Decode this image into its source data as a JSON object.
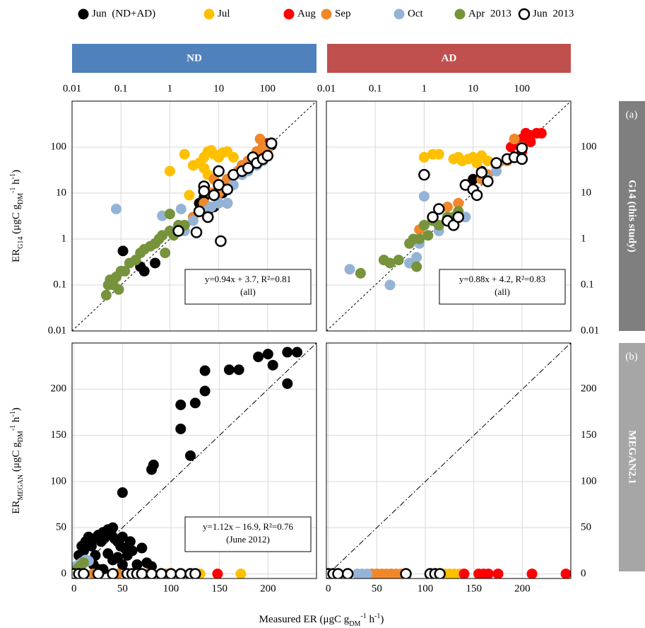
{
  "legend": {
    "series": [
      {
        "name": "Jun  (ND+AD)",
        "color": "#000000"
      },
      {
        "name": "Jul",
        "color": "#ffc000"
      },
      {
        "name": "Aug",
        "color": "#ff0000"
      },
      {
        "name": "Sep",
        "color": "#f0882a"
      },
      {
        "name": "Oct",
        "color": "#95b3d7"
      },
      {
        "name": "Apr  2013",
        "color": "#77933c"
      },
      {
        "name": "Jun  2013",
        "color": "#ffffff",
        "hollow": true
      }
    ]
  },
  "headers": [
    "ND",
    "AD"
  ],
  "side_panels": [
    {
      "tag": "(a)",
      "label": "G14 (this study)",
      "color": "#7f7f7f"
    },
    {
      "tag": "(b)",
      "label": "MEGAN2.1",
      "color": "#a6a6a6"
    }
  ],
  "xlabel_parts": [
    {
      "text": "Measured ER (μgC g"
    },
    {
      "text": "DM",
      "shift": "sub"
    },
    {
      "text": "-1",
      "shift": "super"
    },
    {
      "text": " h"
    },
    {
      "text": "-1",
      "shift": "super"
    },
    {
      "text": ")"
    }
  ],
  "chart_data": [
    {
      "type": "scatter",
      "xlog": true,
      "ylog": true,
      "xlim": [
        0.01,
        1000
      ],
      "ylim": [
        0.01,
        1000
      ],
      "xticks": [
        0.01,
        0.1,
        1,
        10,
        100
      ],
      "yticks": [
        0.01,
        0.1,
        1,
        10,
        100
      ],
      "grid": true,
      "ref_line": "dashed",
      "ylabel_parts": [
        {
          "text": "ER"
        },
        {
          "text": "G14",
          "shift": "sub"
        },
        {
          "text": " (μgC g"
        },
        {
          "text": "DM",
          "shift": "sub"
        },
        {
          "text": "-1",
          "shift": "super"
        },
        {
          "text": " h"
        },
        {
          "text": "-1",
          "shift": "super"
        },
        {
          "text": ")"
        }
      ],
      "annotation": [
        "y=0.94x + 3.7, R²=0.81",
        "(all)"
      ],
      "series": [
        {
          "x": [
            0.11,
            0.25,
            0.3,
            0.5,
            5,
            7,
            8,
            10,
            12,
            15,
            20,
            25,
            30,
            40,
            50,
            60,
            80,
            100,
            120,
            6,
            4,
            15
          ],
          "y": [
            0.55,
            0.25,
            0.2,
            0.3,
            8,
            10,
            5,
            12,
            10,
            20,
            25,
            30,
            40,
            50,
            60,
            70,
            100,
            120,
            110,
            4,
            6,
            6
          ]
        },
        {
          "x": [
            1,
            2,
            2.5,
            3,
            4,
            5,
            6,
            7,
            8,
            10,
            12,
            15,
            20,
            5,
            6
          ],
          "y": [
            30,
            70,
            9,
            40,
            45,
            60,
            80,
            85,
            70,
            60,
            75,
            80,
            60,
            35,
            25
          ]
        },
        {
          "x": [
            80,
            100,
            110,
            120,
            90,
            70
          ],
          "y": [
            90,
            110,
            120,
            125,
            100,
            80
          ]
        },
        {
          "x": [
            0.5,
            2,
            3,
            5,
            7,
            10,
            12,
            15,
            20,
            25,
            30,
            40,
            50,
            60,
            70,
            80,
            100,
            5,
            8
          ],
          "y": [
            0.8,
            2,
            3,
            6,
            10,
            10,
            15,
            20,
            25,
            30,
            40,
            50,
            60,
            80,
            150,
            100,
            90,
            12,
            20
          ]
        },
        {
          "x": [
            0.08,
            0.7,
            1.7,
            2,
            3,
            5,
            7,
            10,
            20,
            30,
            40,
            60,
            80,
            15
          ],
          "y": [
            4.5,
            3.2,
            4.5,
            1.5,
            2.5,
            4,
            5,
            6,
            15,
            25,
            30,
            40,
            50,
            6
          ]
        },
        {
          "x": [
            0.05,
            0.055,
            0.06,
            0.07,
            0.08,
            0.1,
            0.12,
            0.15,
            0.2,
            0.25,
            0.3,
            0.4,
            0.5,
            0.7,
            1,
            1.5,
            2,
            0.09,
            0.6,
            1,
            0.8,
            1.2
          ],
          "y": [
            0.06,
            0.1,
            0.13,
            0.1,
            0.15,
            0.2,
            0.2,
            0.3,
            0.35,
            0.5,
            0.6,
            0.7,
            0.8,
            1.2,
            1.5,
            2,
            2,
            0.08,
            1,
            3.5,
            0.5,
            1.2
          ]
        },
        {
          "x": [
            1.5,
            4,
            5,
            6,
            8,
            10,
            11,
            15,
            20,
            30,
            40,
            50,
            60,
            80,
            100,
            120,
            10,
            3.5,
            5
          ],
          "y": [
            1.5,
            4,
            14,
            3,
            9,
            15,
            0.9,
            12,
            25,
            30,
            35,
            60,
            45,
            55,
            65,
            120,
            30,
            1.4,
            11
          ]
        }
      ]
    },
    {
      "type": "scatter",
      "xlog": true,
      "ylog": true,
      "xlim": [
        0.01,
        1000
      ],
      "ylim": [
        0.01,
        1000
      ],
      "xticks": [
        0.01,
        0.1,
        1,
        10,
        100
      ],
      "yticks": [
        0.01,
        0.1,
        1,
        10,
        100
      ],
      "grid": true,
      "ref_line": "dashed",
      "annotation": [
        "y=0.88x + 4.2, R²=0.83",
        "(all)"
      ],
      "series": [
        {
          "x": [
            10,
            15,
            20
          ],
          "y": [
            20,
            30,
            25
          ]
        },
        {
          "x": [
            1,
            1.5,
            2,
            4,
            5,
            6,
            8,
            10,
            12,
            15,
            20
          ],
          "y": [
            60,
            70,
            70,
            55,
            60,
            50,
            55,
            60,
            45,
            65,
            50
          ]
        },
        {
          "x": [
            60,
            80,
            100,
            120,
            150,
            200,
            250,
            100,
            150
          ],
          "y": [
            100,
            120,
            150,
            200,
            180,
            200,
            200,
            80,
            130
          ]
        },
        {
          "x": [
            0.8,
            3,
            5,
            10,
            15,
            20,
            30,
            50,
            70,
            100
          ],
          "y": [
            1.6,
            5,
            6,
            12,
            20,
            25,
            40,
            50,
            150,
            100
          ]
        },
        {
          "x": [
            0.03,
            0.2,
            0.5,
            0.7,
            0.8,
            1,
            2,
            3,
            5,
            7,
            10,
            20,
            30
          ],
          "y": [
            0.22,
            0.1,
            0.3,
            0.4,
            0.8,
            8.5,
            1.5,
            2.5,
            3,
            3,
            12,
            20,
            30
          ]
        },
        {
          "x": [
            0.05,
            0.15,
            0.2,
            0.3,
            0.5,
            0.6,
            0.8,
            1,
            1.5,
            2,
            3,
            4,
            5,
            1.2,
            0.7
          ],
          "y": [
            0.18,
            0.35,
            0.3,
            0.35,
            0.8,
            1,
            1,
            2,
            2.5,
            2,
            3,
            3,
            4,
            1.2,
            0.25
          ]
        },
        {
          "x": [
            1,
            1.5,
            2,
            3,
            4,
            5,
            7,
            10,
            12,
            15,
            20,
            30,
            50,
            70,
            100,
            100
          ],
          "y": [
            25,
            3,
            4.5,
            2.5,
            2,
            3,
            15,
            12,
            9,
            28,
            18,
            45,
            55,
            60,
            95,
            55
          ]
        }
      ]
    },
    {
      "type": "scatter",
      "xlog": false,
      "ylog": false,
      "xlim": [
        -2,
        250
      ],
      "ylim": [
        -5,
        250
      ],
      "xticks": [
        0,
        50,
        100,
        150,
        200
      ],
      "yticks": [
        0,
        50,
        100,
        150,
        200
      ],
      "grid": true,
      "ref_line": "dash-dot",
      "ylabel_parts": [
        {
          "text": "ER"
        },
        {
          "text": "MEGAN",
          "shift": "sub"
        },
        {
          "text": " (μgC g"
        },
        {
          "text": "DM",
          "shift": "sub"
        },
        {
          "text": "-1",
          "shift": "super"
        },
        {
          "text": " h"
        },
        {
          "text": "-1",
          "shift": "super"
        },
        {
          "text": ")"
        }
      ],
      "annotation": [
        "y=1.12x – 16.9, R²=0.76",
        "(June 2012)"
      ],
      "series": [
        {
          "x": [
            5,
            8,
            10,
            12,
            15,
            18,
            20,
            22,
            25,
            28,
            30,
            32,
            35,
            38,
            40,
            42,
            45,
            48,
            50,
            52,
            55,
            58,
            60,
            65,
            70,
            75,
            80,
            30,
            40,
            50,
            20,
            25,
            35,
            45,
            110,
            110,
            125,
            120,
            135,
            135,
            160,
            170,
            190,
            200,
            205,
            220,
            220,
            230,
            80,
            82,
            50
          ],
          "y": [
            20,
            30,
            25,
            35,
            40,
            30,
            38,
            20,
            42,
            35,
            45,
            40,
            48,
            44,
            50,
            38,
            35,
            30,
            40,
            28,
            20,
            35,
            25,
            10,
            28,
            12,
            8,
            5,
            15,
            10,
            10,
            5,
            22,
            18,
            157,
            183,
            185,
            128,
            198,
            220,
            221,
            221,
            235,
            238,
            226,
            206,
            240,
            240,
            113,
            118,
            88
          ]
        },
        {
          "x": [
            120,
            125,
            130,
            172
          ],
          "y": [
            0,
            0,
            0,
            0
          ]
        },
        {
          "x": [
            80,
            100,
            148
          ],
          "y": [
            0,
            0,
            0
          ]
        },
        {
          "x": [
            20,
            45,
            60,
            75,
            90,
            95,
            100
          ],
          "y": [
            0,
            0,
            0,
            0,
            0,
            0,
            0
          ]
        },
        {
          "x": [
            0,
            2,
            5,
            8,
            10,
            12,
            15
          ],
          "y": [
            5,
            8,
            10,
            12,
            13,
            15,
            14
          ]
        },
        {
          "x": [
            1,
            3,
            5,
            7,
            10
          ],
          "y": [
            3,
            5,
            7,
            9,
            12
          ]
        },
        {
          "x": [
            0,
            5,
            10,
            25,
            40,
            55,
            60,
            65,
            70,
            80,
            90,
            100,
            110,
            120,
            125
          ],
          "y": [
            0,
            0,
            0,
            0,
            0,
            0,
            0,
            0,
            0,
            0,
            0,
            0,
            0,
            0,
            0
          ]
        }
      ]
    },
    {
      "type": "scatter",
      "xlog": false,
      "ylog": false,
      "xlim": [
        -2,
        250
      ],
      "ylim": [
        -5,
        250
      ],
      "xticks": [
        0,
        50,
        100,
        150,
        200
      ],
      "yticks": [
        0,
        50,
        100,
        150,
        200
      ],
      "grid": true,
      "ref_line": "dash-dot",
      "series": [
        {
          "x": [],
          "y": []
        },
        {
          "x": [
            120,
            125,
            130,
            135
          ],
          "y": [
            0,
            0,
            0,
            0
          ]
        },
        {
          "x": [
            140,
            155,
            160,
            165,
            175,
            210,
            245
          ],
          "y": [
            0,
            0,
            0,
            0,
            0,
            0,
            0
          ]
        },
        {
          "x": [
            45,
            50,
            55,
            60,
            65,
            70,
            75
          ],
          "y": [
            0,
            0,
            0,
            0,
            0,
            0,
            0
          ]
        },
        {
          "x": [
            10,
            20,
            30,
            35,
            40
          ],
          "y": [
            0,
            0,
            0,
            0,
            0
          ]
        },
        {
          "x": [],
          "y": []
        },
        {
          "x": [
            0,
            5,
            10,
            20,
            80,
            105,
            110,
            115
          ],
          "y": [
            0,
            0,
            0,
            0,
            0,
            0,
            0,
            0
          ]
        }
      ]
    }
  ]
}
